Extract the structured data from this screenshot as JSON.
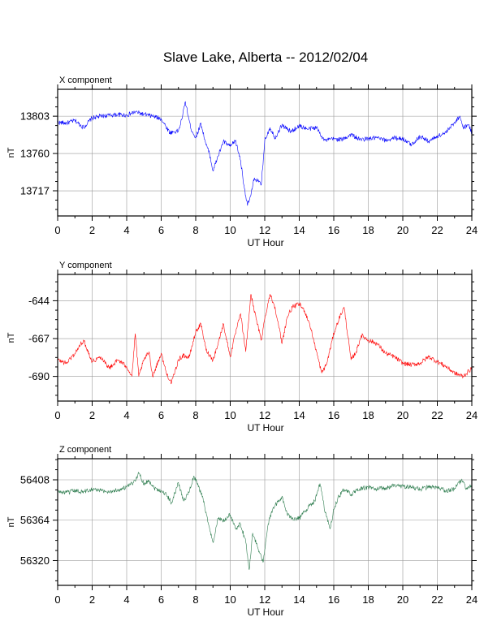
{
  "title": "Slave Lake, Alberta -- 2012/02/04",
  "colors": {
    "x": "#0000ff",
    "y": "#ff0000",
    "z": "#2e7d4f"
  },
  "chart_data": [
    {
      "type": "line",
      "panel_label": "X component",
      "xlabel": "UT Hour",
      "ylabel": "nT",
      "xlim": [
        0,
        24
      ],
      "ylim": [
        13688,
        13834
      ],
      "xticks": [
        0,
        2,
        4,
        6,
        8,
        10,
        12,
        14,
        16,
        18,
        20,
        22,
        24
      ],
      "yticks": [
        13803,
        13760,
        13717
      ],
      "grid": true,
      "series": [
        {
          "x": [
            0,
            0.5,
            1,
            1.5,
            2,
            2.5,
            3,
            3.5,
            4,
            4.5,
            5,
            5.5,
            6,
            6.5,
            7,
            7.2,
            7.4,
            7.7,
            8,
            8.3,
            8.6,
            8.8,
            9,
            9.3,
            9.6,
            10,
            10.3,
            10.6,
            10.8,
            11,
            11.2,
            11.4,
            11.6,
            11.8,
            12,
            12.3,
            12.6,
            13,
            13.5,
            14,
            14.5,
            15,
            15.3,
            15.5,
            16,
            16.5,
            17,
            17.5,
            18,
            18.5,
            19,
            19.5,
            20,
            20.5,
            21,
            21.5,
            22,
            22.5,
            23,
            23.3,
            23.5,
            23.8,
            24
          ],
          "y": [
            13796,
            13795,
            13798,
            13790,
            13801,
            13803,
            13804,
            13805,
            13804,
            13808,
            13805,
            13803,
            13800,
            13784,
            13786,
            13800,
            13820,
            13790,
            13778,
            13795,
            13770,
            13760,
            13740,
            13757,
            13774,
            13768,
            13775,
            13752,
            13723,
            13700,
            13712,
            13732,
            13728,
            13724,
            13775,
            13790,
            13778,
            13793,
            13785,
            13792,
            13788,
            13790,
            13780,
            13775,
            13777,
            13776,
            13782,
            13776,
            13777,
            13778,
            13775,
            13778,
            13777,
            13770,
            13780,
            13774,
            13780,
            13784,
            13796,
            13803,
            13790,
            13793,
            13784
          ]
        }
      ]
    },
    {
      "type": "line",
      "panel_label": "Y component",
      "xlabel": "UT Hour",
      "ylabel": "nT",
      "xlim": [
        0,
        24
      ],
      "ylim": [
        -705,
        -628
      ],
      "xticks": [
        0,
        2,
        4,
        6,
        8,
        10,
        12,
        14,
        16,
        18,
        20,
        22,
        24
      ],
      "yticks": [
        -644,
        -667,
        -690
      ],
      "grid": true,
      "series": [
        {
          "x": [
            0,
            0.5,
            1,
            1.5,
            2,
            2.5,
            3,
            3.5,
            4,
            4.3,
            4.5,
            4.7,
            5,
            5.3,
            5.5,
            6,
            6.3,
            6.6,
            7,
            7.3,
            7.6,
            8,
            8.3,
            8.6,
            9,
            9.3,
            9.6,
            10,
            10.3,
            10.6,
            10.9,
            11.2,
            11.5,
            11.8,
            12,
            12.3,
            12.6,
            13,
            13.3,
            13.6,
            14,
            14.3,
            14.6,
            15,
            15.3,
            15.6,
            16,
            16.3,
            16.6,
            17,
            17.3,
            17.6,
            18,
            18.5,
            19,
            19.5,
            20,
            20.5,
            21,
            21.5,
            22,
            22.5,
            23,
            23.5,
            24
          ],
          "y": [
            -680,
            -682,
            -676,
            -668,
            -681,
            -678,
            -685,
            -680,
            -684,
            -690,
            -664,
            -690,
            -680,
            -675,
            -690,
            -676,
            -688,
            -694,
            -680,
            -677,
            -679,
            -663,
            -658,
            -674,
            -680,
            -670,
            -658,
            -678,
            -664,
            -652,
            -675,
            -640,
            -655,
            -668,
            -655,
            -640,
            -648,
            -670,
            -654,
            -648,
            -646,
            -650,
            -658,
            -675,
            -688,
            -682,
            -664,
            -655,
            -648,
            -680,
            -675,
            -665,
            -668,
            -670,
            -676,
            -678,
            -682,
            -683,
            -682,
            -678,
            -681,
            -684,
            -688,
            -690,
            -685
          ]
        }
      ]
    },
    {
      "type": "line",
      "panel_label": "Z component",
      "xlabel": "UT Hour",
      "ylabel": "nT",
      "xlim": [
        0,
        24
      ],
      "ylim": [
        56293,
        56431
      ],
      "xticks": [
        0,
        2,
        4,
        6,
        8,
        10,
        12,
        14,
        16,
        18,
        20,
        22,
        24
      ],
      "yticks": [
        56408,
        56364,
        56320
      ],
      "grid": true,
      "series": [
        {
          "x": [
            0,
            0.5,
            1,
            1.5,
            2,
            2.5,
            3,
            3.5,
            4,
            4.4,
            4.7,
            5,
            5.3,
            5.6,
            6,
            6.3,
            6.6,
            7,
            7.3,
            7.6,
            7.9,
            8.1,
            8.4,
            8.7,
            9,
            9.3,
            9.6,
            10,
            10.3,
            10.6,
            10.9,
            11.1,
            11.3,
            11.6,
            11.9,
            12.2,
            12.5,
            12.8,
            13,
            13.3,
            13.6,
            14,
            14.3,
            14.6,
            14.9,
            15.2,
            15.5,
            15.8,
            16,
            16.3,
            16.6,
            17,
            17.5,
            18,
            18.5,
            19,
            19.5,
            20,
            20.5,
            21,
            21.5,
            22,
            22.5,
            23,
            23.4,
            23.7,
            24
          ],
          "y": [
            56395,
            56394,
            56396,
            56395,
            56398,
            56396,
            56395,
            56397,
            56400,
            56405,
            56415,
            56404,
            56407,
            56399,
            56396,
            56392,
            56383,
            56405,
            56385,
            56394,
            56412,
            56403,
            56390,
            56362,
            56340,
            56366,
            56363,
            56370,
            56355,
            56360,
            56340,
            56310,
            56350,
            56334,
            56318,
            56360,
            56378,
            56384,
            56390,
            56370,
            56366,
            56366,
            56373,
            56380,
            56385,
            56404,
            56372,
            56355,
            56376,
            56390,
            56398,
            56392,
            56398,
            56400,
            56398,
            56399,
            56402,
            56401,
            56400,
            56398,
            56400,
            56399,
            56396,
            56398,
            56408,
            56398,
            56402
          ]
        }
      ]
    }
  ]
}
